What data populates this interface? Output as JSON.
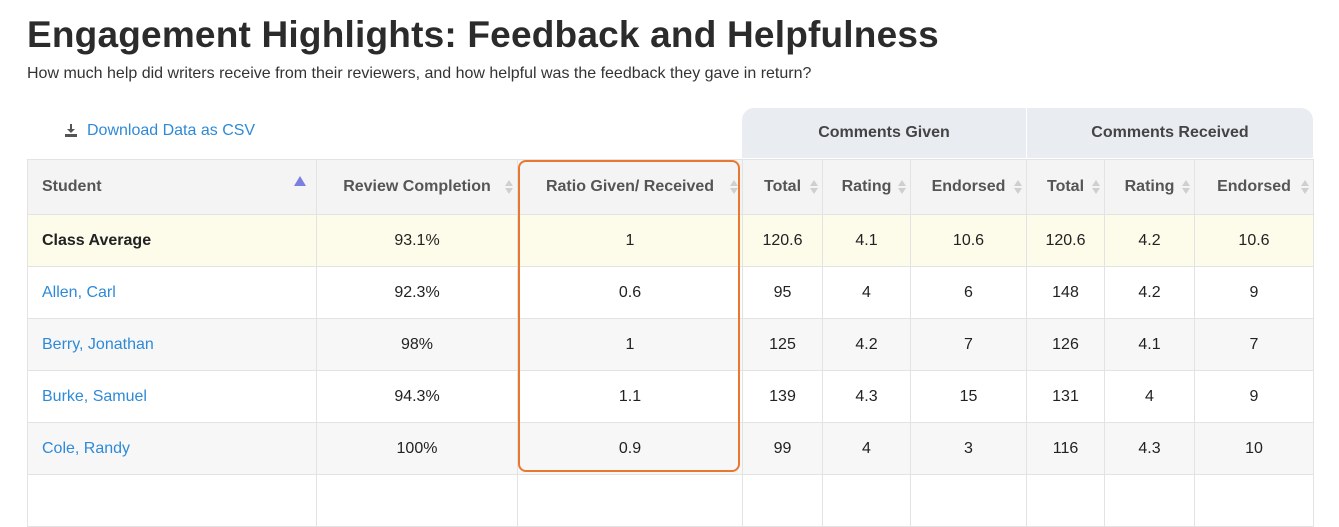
{
  "title": "Engagement Highlights: Feedback and Helpfulness",
  "subtitle": "How much help did writers receive from their reviewers, and how helpful was the feedback they gave in return?",
  "download_label": "Download Data as CSV",
  "groups": {
    "given": "Comments Given",
    "received": "Comments Received"
  },
  "columns": {
    "student": "Student",
    "review_completion": "Review Completion",
    "ratio": "Ratio Given/ Received",
    "given_total": "Total",
    "given_rating": "Rating",
    "given_endorsed": "Endorsed",
    "received_total": "Total",
    "received_rating": "Rating",
    "received_endorsed": "Endorsed"
  },
  "sort": {
    "column": "Student",
    "direction": "ascending"
  },
  "highlight_color": "#e87831",
  "link_color": "#2e8ad8",
  "rows": [
    {
      "name": "Class Average",
      "completion": "93.1%",
      "ratio": "1",
      "g_total": "120.6",
      "g_rating": "4.1",
      "g_endorsed": "10.6",
      "r_total": "120.6",
      "r_rating": "4.2",
      "r_endorsed": "10.6"
    },
    {
      "name": "Allen, Carl",
      "completion": "92.3%",
      "ratio": "0.6",
      "g_total": "95",
      "g_rating": "4",
      "g_endorsed": "6",
      "r_total": "148",
      "r_rating": "4.2",
      "r_endorsed": "9"
    },
    {
      "name": "Berry, Jonathan",
      "completion": "98%",
      "ratio": "1",
      "g_total": "125",
      "g_rating": "4.2",
      "g_endorsed": "7",
      "r_total": "126",
      "r_rating": "4.1",
      "r_endorsed": "7"
    },
    {
      "name": "Burke, Samuel",
      "completion": "94.3%",
      "ratio": "1.1",
      "g_total": "139",
      "g_rating": "4.3",
      "g_endorsed": "15",
      "r_total": "131",
      "r_rating": "4",
      "r_endorsed": "9"
    },
    {
      "name": "Cole, Randy",
      "completion": "100%",
      "ratio": "0.9",
      "g_total": "99",
      "g_rating": "4",
      "g_endorsed": "3",
      "r_total": "116",
      "r_rating": "4.3",
      "r_endorsed": "10"
    }
  ]
}
